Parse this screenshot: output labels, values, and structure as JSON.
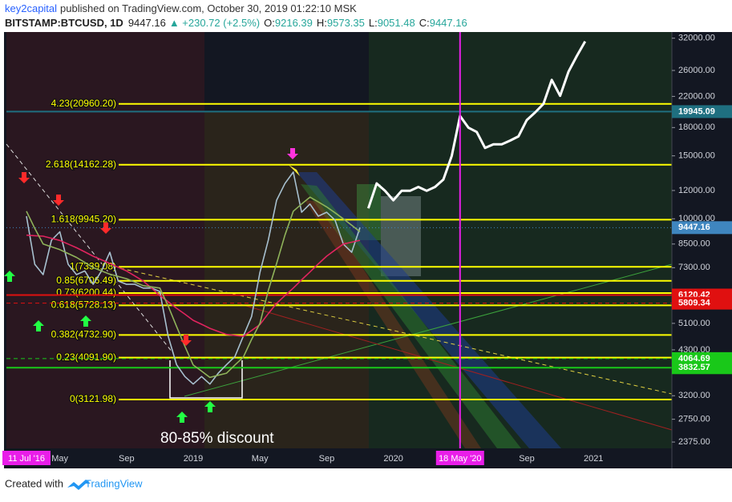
{
  "header": {
    "author": "key2capital",
    "published": "published on TradingView.com, October 30, 2019 01:22:10 MSK",
    "symbol": "BITSTAMP:BTCUSD, 1D",
    "price": "9447.16",
    "change": "▲ +230.72 (+2.5%)",
    "ohlc": [
      {
        "label": "O:",
        "value": "9216.39"
      },
      {
        "label": "H:",
        "value": "9573.35"
      },
      {
        "label": "L:",
        "value": "9051.48"
      },
      {
        "label": "C:",
        "value": "9447.16"
      }
    ]
  },
  "footer": {
    "text": "Created with",
    "brand": "TradingView"
  },
  "chart_data": {
    "type": "line",
    "log_scale": true,
    "grid": false,
    "annotation": "80-85% discount",
    "categories": [
      "11 Jul '16",
      null,
      null,
      null,
      "May",
      null,
      null,
      null,
      null,
      null,
      null,
      null,
      "Sep",
      null,
      null,
      null,
      null,
      null,
      null,
      null,
      "2019",
      null,
      null,
      null,
      null,
      null,
      null,
      null,
      "May",
      null,
      null,
      null,
      null,
      null,
      null,
      null,
      "Sep",
      null,
      null,
      null,
      null,
      null,
      null,
      null,
      "2020",
      null,
      null,
      null,
      null,
      null,
      null,
      null,
      "18 May '20",
      null,
      null,
      null,
      null,
      null,
      null,
      null,
      "Sep",
      null,
      null,
      null,
      null,
      null,
      null,
      null,
      "2021",
      null,
      null,
      null,
      null,
      null,
      null,
      null,
      null,
      null
    ],
    "highlight": [
      "11 Jul '16",
      "18 May '20"
    ],
    "highlight_color": "#e91ee9",
    "vline": "18 May '20",
    "series": [
      {
        "color": "#a7c0cf",
        "values": [
          10170,
          7460,
          6980,
          8710,
          9200,
          7460,
          6980,
          7150,
          6560,
          7150,
          8060,
          6700,
          6560,
          6560,
          6400,
          6400,
          6260,
          4690,
          3910,
          3620,
          3450,
          3620,
          3450,
          3700,
          3910,
          4120,
          4690,
          5330,
          7080,
          8710,
          11270,
          12550,
          13510,
          10430,
          11000,
          10170,
          10430,
          9920,
          8500,
          8060,
          9447.16,
          null,
          null,
          null,
          null,
          null,
          null,
          null,
          null,
          null,
          null,
          null,
          null,
          null,
          null,
          null,
          null,
          null,
          null,
          null,
          null,
          null,
          null,
          null,
          null,
          null,
          null,
          null,
          null,
          null,
          null,
          null,
          null,
          null,
          null,
          null,
          null,
          null
        ]
      },
      {
        "color": "#e0245e",
        "values": [
          9000,
          8970,
          8940,
          8820,
          8700,
          8500,
          8300,
          8080,
          7860,
          7680,
          7500,
          7320,
          7150,
          6920,
          6700,
          6400,
          6100,
          5860,
          5620,
          5410,
          5200,
          5070,
          4940,
          4840,
          4750,
          4720,
          4690,
          4870,
          5060,
          5430,
          5800,
          6100,
          6400,
          6750,
          7100,
          7480,
          7860,
          8180,
          8500,
          8600,
          8710,
          null,
          null,
          null,
          null,
          null,
          null,
          null,
          null,
          null,
          null,
          null,
          null,
          null,
          null,
          null,
          null,
          null,
          null,
          null,
          null,
          null,
          null,
          null,
          null,
          null,
          null,
          null,
          null,
          null,
          null,
          null,
          null,
          null,
          null,
          null,
          null,
          null
        ]
      },
      {
        "color": "#8fb35a",
        "values": [
          10500,
          9400,
          8500,
          8350,
          8200,
          8000,
          7800,
          7550,
          7300,
          7150,
          7000,
          6900,
          6800,
          6650,
          6500,
          6450,
          6400,
          5700,
          5000,
          4400,
          3900,
          3750,
          3600,
          3650,
          3700,
          3900,
          4100,
          4600,
          5100,
          6300,
          7500,
          9000,
          10500,
          11000,
          11500,
          11150,
          10800,
          10400,
          10000,
          9600,
          9200,
          null,
          null,
          null,
          null,
          null,
          null,
          null,
          null,
          null,
          null,
          null,
          null,
          null,
          null,
          null,
          null,
          null,
          null,
          null,
          null,
          null,
          null,
          null,
          null,
          null,
          null,
          null,
          null,
          null,
          null,
          null,
          null,
          null,
          null,
          null,
          null,
          null
        ]
      },
      {
        "color": "#ffffff",
        "values": [
          null,
          null,
          null,
          null,
          null,
          null,
          null,
          null,
          null,
          null,
          null,
          null,
          null,
          null,
          null,
          null,
          null,
          null,
          null,
          null,
          null,
          null,
          null,
          null,
          null,
          null,
          null,
          null,
          null,
          null,
          null,
          null,
          null,
          null,
          null,
          null,
          null,
          null,
          null,
          null,
          null,
          10700,
          12560,
          11980,
          11270,
          11980,
          11980,
          12280,
          11980,
          12280,
          12880,
          14980,
          19390,
          17990,
          17500,
          15780,
          16160,
          16160,
          16550,
          17000,
          18880,
          19830,
          20960,
          24460,
          22080,
          25770,
          28530,
          31350,
          null,
          null,
          null,
          null,
          null,
          null,
          null,
          null,
          null,
          null
        ]
      }
    ],
    "ylim": [
      2280,
      33300
    ],
    "yticks": [
      {
        "value": 32000,
        "label": "32000.00"
      },
      {
        "value": 26000,
        "label": "26000.00"
      },
      {
        "value": 22000,
        "label": "22000.00"
      },
      {
        "value": 18000,
        "label": "18000.00"
      },
      {
        "value": 15000,
        "label": "15000.00"
      },
      {
        "value": 12000,
        "label": "12000.00"
      },
      {
        "value": 10000,
        "label": "10000.00"
      },
      {
        "value": 8500,
        "label": "8500.00"
      },
      {
        "value": 7300,
        "label": "7300.00"
      },
      {
        "value": 5100,
        "label": "5100.00"
      },
      {
        "value": 4300,
        "label": "4300.00"
      },
      {
        "value": 3200,
        "label": "3200.00"
      },
      {
        "value": 2750,
        "label": "2750.00"
      },
      {
        "value": 2375,
        "label": "2375.00"
      }
    ],
    "fib_levels": [
      {
        "label": "4.23(20960.20)",
        "value": 20960.2
      },
      {
        "label": "2.618(14162.28)",
        "value": 14162.28
      },
      {
        "label": "1.618(9945.20)",
        "value": 9945.2
      },
      {
        "label": "1(7339.08)",
        "value": 7339.08
      },
      {
        "label": "0.85(6706.49)",
        "value": 6706.49
      },
      {
        "label": "0.73(6200.44)",
        "value": 6200.44
      },
      {
        "label": "0.618(5728.13)",
        "value": 5728.13
      },
      {
        "label": "0.382(4732.90)",
        "value": 4732.9
      },
      {
        "label": "0.23(4091.90)",
        "value": 4091.9
      },
      {
        "label": "0(3121.98)",
        "value": 3121.98
      }
    ],
    "fib_color": "#ffff00",
    "price_lines": [
      {
        "value": 19945.09,
        "color": "#1f6f80",
        "style": "solid"
      },
      {
        "value": 9447.16,
        "color": "#3f86bf",
        "style": "dotted"
      },
      {
        "value": 6120.42,
        "color": "#e01010",
        "style": "solid"
      },
      {
        "value": 5809.34,
        "color": "#e01010",
        "style": "dashed"
      },
      {
        "value": 4064.69,
        "color": "#19c819",
        "style": "dashed"
      },
      {
        "value": 3832.57,
        "color": "#19c819",
        "style": "solid"
      }
    ]
  }
}
